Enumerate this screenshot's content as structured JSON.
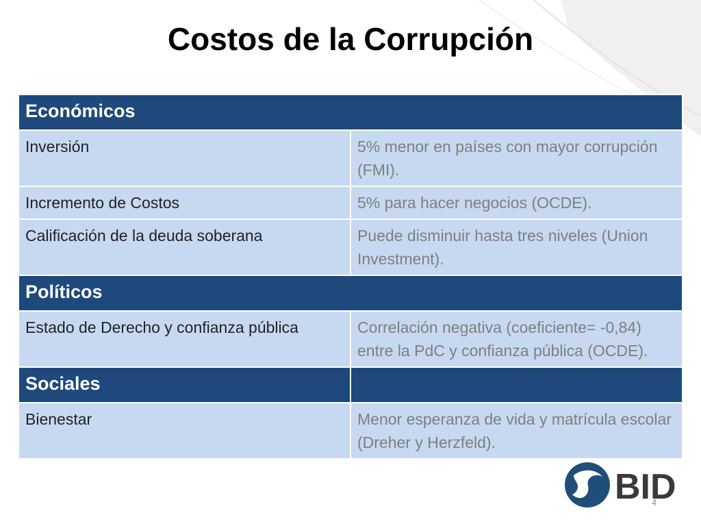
{
  "title": "Costos de la Corrupción",
  "table": {
    "economic": {
      "header": "Económicos",
      "rows": [
        {
          "label": "Inversión",
          "value": "5% menor en países con mayor corrupción (FMI)."
        },
        {
          "label": "Incremento de Costos",
          "value": "5% para hacer negocios (OCDE)."
        },
        {
          "label": "Calificación de la deuda soberana",
          "value": "Puede disminuir hasta tres niveles (Union Investment)."
        }
      ]
    },
    "political": {
      "header": "Políticos",
      "rows": [
        {
          "label": "Estado de Derecho y confianza pública",
          "value": "Correlación negativa (coeficiente= -0,84) entre la PdC y confianza pública (OCDE)."
        }
      ]
    },
    "social": {
      "header": "Sociales",
      "rows": [
        {
          "label": "Bienestar",
          "value": "Menor esperanza de vida y matrícula escolar (Dreher y Herzfeld)."
        }
      ]
    }
  },
  "page_number": "4",
  "logo": {
    "text": "BID",
    "color": "#1f4e79"
  },
  "colors": {
    "section_header": "#1f497d",
    "row_fill": "#c6d9f1"
  }
}
